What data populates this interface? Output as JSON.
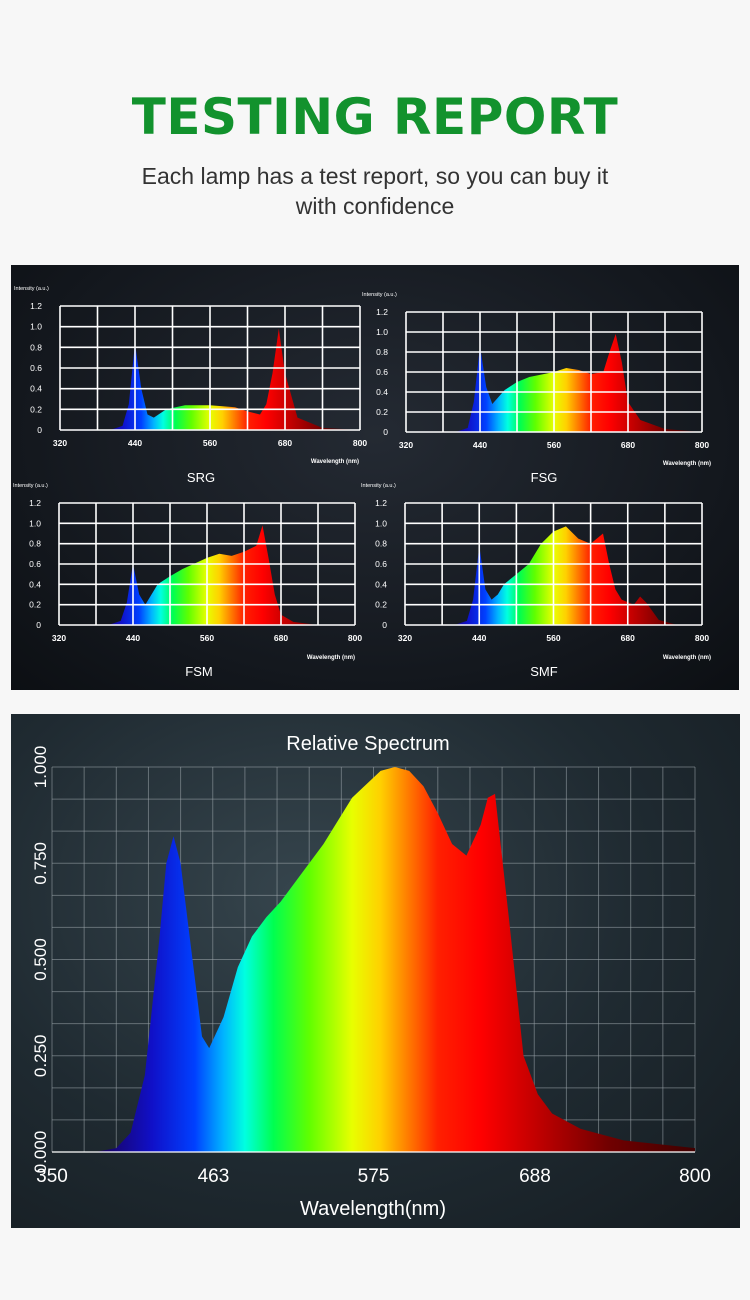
{
  "header": {
    "title": "TESTING REPORT",
    "subtitle_line1": "Each lamp has a test report, so you can buy it",
    "subtitle_line2": "with confidence"
  },
  "colors": {
    "title_green": "#12922d",
    "subtitle": "#333333",
    "panel_dark": "#13171d",
    "grid_white": "#ffffff"
  },
  "chart_data": [
    {
      "type": "area",
      "title": "SRG",
      "ylabel": "Intensity (a.u.)",
      "xlabel": "Wavelength (nm)",
      "xlim": [
        320,
        800
      ],
      "ylim": [
        0,
        1.2
      ],
      "xticks": [
        "320",
        "440",
        "560",
        "680",
        "800"
      ],
      "yticks": [
        "0",
        "0.2",
        "0.4",
        "0.6",
        "0.8",
        "1.0",
        "1.2"
      ],
      "series": [
        {
          "x": [
            320,
            400,
            420,
            430,
            440,
            450,
            460,
            470,
            490,
            520,
            560,
            600,
            620,
            640,
            650,
            660,
            670,
            680,
            700,
            740,
            800
          ],
          "y": [
            0,
            0,
            0.04,
            0.25,
            0.84,
            0.4,
            0.15,
            0.12,
            0.2,
            0.24,
            0.24,
            0.22,
            0.18,
            0.15,
            0.25,
            0.55,
            0.98,
            0.55,
            0.12,
            0.02,
            0
          ]
        }
      ]
    },
    {
      "type": "area",
      "title": "FSG",
      "ylabel": "Intensity (a.u.)",
      "xlabel": "Wavelength (nm)",
      "xlim": [
        320,
        800
      ],
      "ylim": [
        0,
        1.2
      ],
      "xticks": [
        "320",
        "440",
        "560",
        "680",
        "800"
      ],
      "yticks": [
        "0",
        "0.2",
        "0.4",
        "0.6",
        "0.8",
        "1.0",
        "1.2"
      ],
      "series": [
        {
          "x": [
            320,
            400,
            420,
            430,
            440,
            450,
            460,
            470,
            480,
            500,
            520,
            560,
            580,
            600,
            620,
            640,
            650,
            660,
            670,
            680,
            700,
            740,
            800
          ],
          "y": [
            0,
            0,
            0.04,
            0.3,
            0.86,
            0.45,
            0.28,
            0.35,
            0.42,
            0.5,
            0.55,
            0.6,
            0.64,
            0.62,
            0.58,
            0.6,
            0.8,
            0.98,
            0.7,
            0.3,
            0.12,
            0.03,
            0
          ]
        }
      ]
    },
    {
      "type": "area",
      "title": "FSM",
      "ylabel": "Intensity (a.u.)",
      "xlabel": "Wavelength (nm)",
      "xlim": [
        320,
        800
      ],
      "ylim": [
        0,
        1.2
      ],
      "xticks": [
        "320",
        "440",
        "560",
        "680",
        "800"
      ],
      "yticks": [
        "0",
        "0.2",
        "0.4",
        "0.6",
        "0.8",
        "1.0",
        "1.2"
      ],
      "series": [
        {
          "x": [
            320,
            400,
            420,
            430,
            440,
            450,
            460,
            470,
            480,
            500,
            520,
            560,
            580,
            600,
            620,
            640,
            650,
            660,
            670,
            680,
            700,
            740,
            800
          ],
          "y": [
            0,
            0,
            0.04,
            0.22,
            0.6,
            0.3,
            0.2,
            0.3,
            0.4,
            0.48,
            0.55,
            0.66,
            0.7,
            0.68,
            0.72,
            0.78,
            0.98,
            0.65,
            0.3,
            0.1,
            0.03,
            0,
            0
          ]
        }
      ]
    },
    {
      "type": "area",
      "title": "SMF",
      "ylabel": "Intensity (a.u.)",
      "xlabel": "Wavelength (nm)",
      "xlim": [
        320,
        800
      ],
      "ylim": [
        0,
        1.2
      ],
      "xticks": [
        "320",
        "440",
        "560",
        "680",
        "800"
      ],
      "yticks": [
        "0",
        "0.2",
        "0.4",
        "0.6",
        "0.8",
        "1.0",
        "1.2"
      ],
      "series": [
        {
          "x": [
            320,
            400,
            420,
            430,
            440,
            450,
            460,
            470,
            480,
            500,
            520,
            540,
            560,
            580,
            600,
            620,
            640,
            650,
            660,
            670,
            690,
            700,
            710,
            730,
            760,
            800
          ],
          "y": [
            0,
            0,
            0.04,
            0.25,
            0.78,
            0.35,
            0.25,
            0.3,
            0.4,
            0.5,
            0.6,
            0.8,
            0.92,
            0.97,
            0.85,
            0.8,
            0.9,
            0.6,
            0.35,
            0.25,
            0.2,
            0.28,
            0.22,
            0.05,
            0,
            0
          ]
        }
      ]
    },
    {
      "type": "area",
      "title": "Relative Spectrum",
      "xlabel": "Wavelength(nm)",
      "ylabel": "",
      "xlim": [
        350,
        800
      ],
      "ylim": [
        0,
        1.0
      ],
      "xticks": [
        "350",
        "463",
        "575",
        "688",
        "800"
      ],
      "yticks": [
        "0.000",
        "0.250",
        "0.500",
        "0.750",
        "1.000"
      ],
      "series": [
        {
          "x": [
            350,
            380,
            395,
            405,
            415,
            425,
            430,
            435,
            440,
            445,
            450,
            455,
            460,
            470,
            480,
            490,
            500,
            510,
            520,
            540,
            560,
            580,
            590,
            600,
            610,
            620,
            630,
            640,
            650,
            655,
            660,
            670,
            680,
            690,
            700,
            720,
            750,
            800
          ],
          "y": [
            0,
            0,
            0.01,
            0.05,
            0.2,
            0.55,
            0.75,
            0.82,
            0.75,
            0.6,
            0.45,
            0.3,
            0.27,
            0.35,
            0.48,
            0.56,
            0.61,
            0.65,
            0.7,
            0.8,
            0.92,
            0.99,
            1.0,
            0.99,
            0.95,
            0.88,
            0.8,
            0.77,
            0.85,
            0.92,
            0.93,
            0.6,
            0.25,
            0.15,
            0.1,
            0.06,
            0.03,
            0.01
          ]
        }
      ]
    }
  ]
}
